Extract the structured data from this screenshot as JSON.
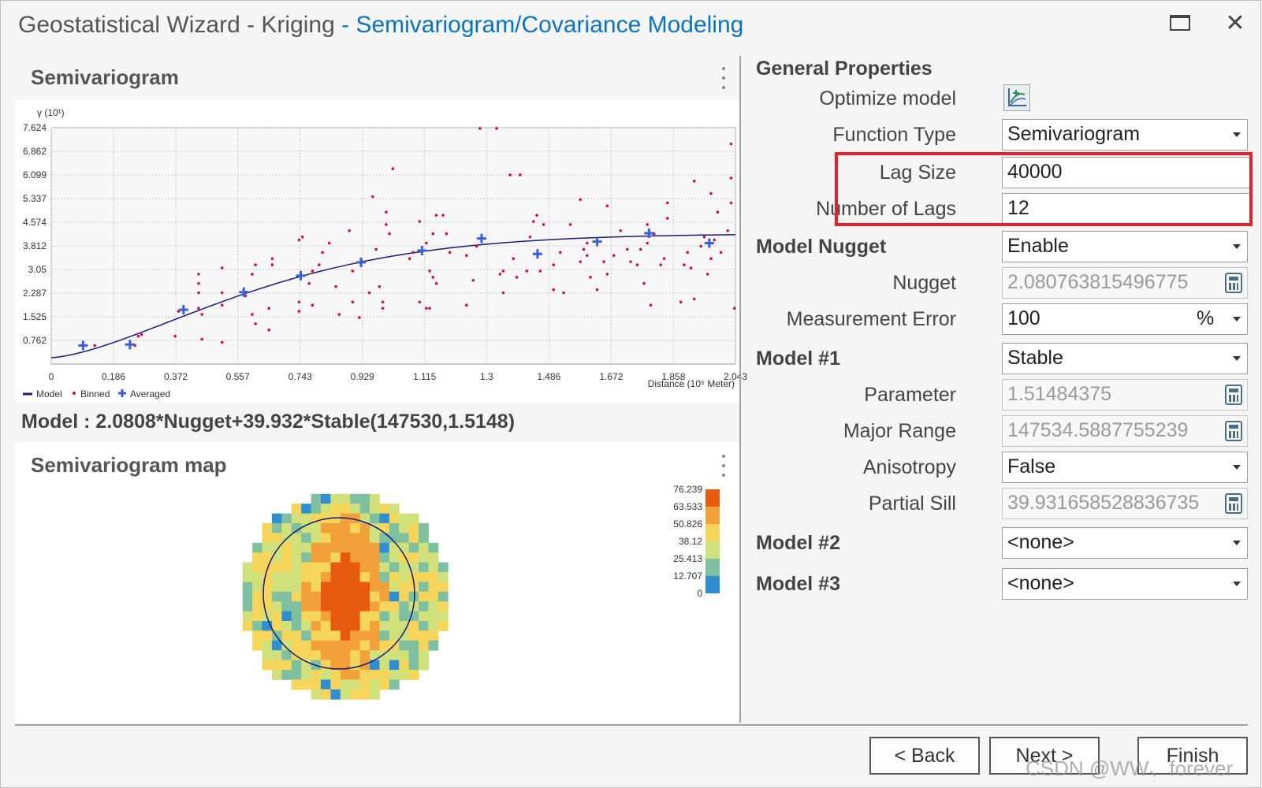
{
  "window": {
    "title_prefix": "Geostatistical Wizard - Kriging",
    "title_step": " - Semivariogram/Covariance Modeling"
  },
  "semivariogram": {
    "heading": "Semivariogram",
    "y_axis_label": "γ (10¹)",
    "x_axis_label": "Distance (10⁵ Meter)",
    "legend": {
      "model": "Model",
      "binned": "Binned",
      "averaged": "Averaged"
    },
    "model_equation": "Model : 2.0808*Nugget+39.932*Stable(147530,1.5148)"
  },
  "chart_data": {
    "type": "scatter",
    "title": "Semivariogram",
    "xlabel": "Distance (10⁵ Meter)",
    "ylabel": "γ (10¹)",
    "xlim": [
      0,
      2.043
    ],
    "ylim": [
      0,
      7.624
    ],
    "x_ticks": [
      "0",
      "0.186",
      "0.372",
      "0.557",
      "0.743",
      "0.929",
      "1.115",
      "1.3",
      "1.486",
      "1.672",
      "1.858",
      "2.043"
    ],
    "y_ticks": [
      "0.762",
      "1.525",
      "2.287",
      "3.05",
      "3.812",
      "4.574",
      "5.337",
      "6.099",
      "6.862",
      "7.624"
    ],
    "grid": true,
    "legend_position": "bottom-left",
    "series": [
      {
        "name": "Model",
        "color": "#1a1a7a",
        "nugget": 0.2081,
        "partial_sill": 3.9932,
        "range": 1.4753,
        "shape": 1.5148
      },
      {
        "name": "Binned",
        "color": "#d0103a",
        "points": [
          [
            0.13,
            0.6
          ],
          [
            0.25,
            0.6
          ],
          [
            0.26,
            0.9
          ],
          [
            0.27,
            0.95
          ],
          [
            0.37,
            0.9
          ],
          [
            0.38,
            1.7
          ],
          [
            0.44,
            1.8
          ],
          [
            0.44,
            2.3
          ],
          [
            0.45,
            0.8
          ],
          [
            0.45,
            1.6
          ],
          [
            0.44,
            2.6
          ],
          [
            0.44,
            2.9
          ],
          [
            0.51,
            1.9
          ],
          [
            0.51,
            3.1
          ],
          [
            0.51,
            2.3
          ],
          [
            0.51,
            0.7
          ],
          [
            0.58,
            2.2
          ],
          [
            0.6,
            1.6
          ],
          [
            0.61,
            1.3
          ],
          [
            0.6,
            2.9
          ],
          [
            0.61,
            3.2
          ],
          [
            0.65,
            1.1
          ],
          [
            0.65,
            1.8
          ],
          [
            0.66,
            3.2
          ],
          [
            0.66,
            3.4
          ],
          [
            0.74,
            1.7
          ],
          [
            0.74,
            2.0
          ],
          [
            0.74,
            4.0
          ],
          [
            0.75,
            4.1
          ],
          [
            0.77,
            2.6
          ],
          [
            0.78,
            3.0
          ],
          [
            0.78,
            1.9
          ],
          [
            0.8,
            3.2
          ],
          [
            0.81,
            3.6
          ],
          [
            0.83,
            3.9
          ],
          [
            0.85,
            2.5
          ],
          [
            0.86,
            1.6
          ],
          [
            0.89,
            4.3
          ],
          [
            0.9,
            3.0
          ],
          [
            0.9,
            2.0
          ],
          [
            0.92,
            1.5
          ],
          [
            0.93,
            3.3
          ],
          [
            0.95,
            2.3
          ],
          [
            0.96,
            5.4
          ],
          [
            0.97,
            3.7
          ],
          [
            0.98,
            2.5
          ],
          [
            0.99,
            2.0
          ],
          [
            0.99,
            1.8
          ],
          [
            1.0,
            4.5
          ],
          [
            1.0,
            4.9
          ],
          [
            1.01,
            4.2
          ],
          [
            1.02,
            6.3
          ],
          [
            1.07,
            3.4
          ],
          [
            1.08,
            3.6
          ],
          [
            1.1,
            2.0
          ],
          [
            1.1,
            4.6
          ],
          [
            1.12,
            1.8
          ],
          [
            1.13,
            1.8
          ],
          [
            1.12,
            3.9
          ],
          [
            1.13,
            3.0
          ],
          [
            1.14,
            4.2
          ],
          [
            1.15,
            4.8
          ],
          [
            1.15,
            2.6
          ],
          [
            1.14,
            2.8
          ],
          [
            1.17,
            4.8
          ],
          [
            1.18,
            4.2
          ],
          [
            1.19,
            3.6
          ],
          [
            1.24,
            1.9
          ],
          [
            1.24,
            3.5
          ],
          [
            1.26,
            2.7
          ],
          [
            1.27,
            3.8
          ],
          [
            1.28,
            7.6
          ],
          [
            1.33,
            7.6
          ],
          [
            1.34,
            2.9
          ],
          [
            1.35,
            2.3
          ],
          [
            1.35,
            3.0
          ],
          [
            1.37,
            6.1
          ],
          [
            1.38,
            3.4
          ],
          [
            1.39,
            2.8
          ],
          [
            1.4,
            6.1
          ],
          [
            1.42,
            3.0
          ],
          [
            1.43,
            4.1
          ],
          [
            1.44,
            4.6
          ],
          [
            1.45,
            4.8
          ],
          [
            1.46,
            3.0
          ],
          [
            1.47,
            4.5
          ],
          [
            1.5,
            2.4
          ],
          [
            1.5,
            3.2
          ],
          [
            1.52,
            3.6
          ],
          [
            1.53,
            2.3
          ],
          [
            1.55,
            4.5
          ],
          [
            1.58,
            5.3
          ],
          [
            1.58,
            3.3
          ],
          [
            1.59,
            3.7
          ],
          [
            1.6,
            3.5
          ],
          [
            1.6,
            3.9
          ],
          [
            1.61,
            2.8
          ],
          [
            1.63,
            2.4
          ],
          [
            1.65,
            3.3
          ],
          [
            1.66,
            5.1
          ],
          [
            1.66,
            2.9
          ],
          [
            1.68,
            3.5
          ],
          [
            1.7,
            4.3
          ],
          [
            1.72,
            3.7
          ],
          [
            1.73,
            3.3
          ],
          [
            1.75,
            3.2
          ],
          [
            1.76,
            3.7
          ],
          [
            1.77,
            2.6
          ],
          [
            1.78,
            4.5
          ],
          [
            1.78,
            3.9
          ],
          [
            1.79,
            1.9
          ],
          [
            1.8,
            4.2
          ],
          [
            1.82,
            3.2
          ],
          [
            1.83,
            3.4
          ],
          [
            1.84,
            4.7
          ],
          [
            1.84,
            5.2
          ],
          [
            1.88,
            2.0
          ],
          [
            1.89,
            3.2
          ],
          [
            1.9,
            3.6
          ],
          [
            1.91,
            3.1
          ],
          [
            1.92,
            5.9
          ],
          [
            1.92,
            2.1
          ],
          [
            1.94,
            3.8
          ],
          [
            1.95,
            4.1
          ],
          [
            1.96,
            2.9
          ],
          [
            1.97,
            3.4
          ],
          [
            1.97,
            5.5
          ],
          [
            1.98,
            4.0
          ],
          [
            1.99,
            4.9
          ],
          [
            2.0,
            3.6
          ],
          [
            2.02,
            4.3
          ],
          [
            2.03,
            6.0
          ],
          [
            2.03,
            7.1
          ],
          [
            2.03,
            5.2
          ],
          [
            2.04,
            1.8
          ]
        ]
      },
      {
        "name": "Averaged",
        "color": "#3a5ed6",
        "points": [
          [
            0.095,
            0.6
          ],
          [
            0.235,
            0.63
          ],
          [
            0.395,
            1.75
          ],
          [
            0.575,
            2.32
          ],
          [
            0.745,
            2.85
          ],
          [
            0.925,
            3.28
          ],
          [
            1.107,
            3.66
          ],
          [
            1.285,
            4.05
          ],
          [
            1.452,
            3.55
          ],
          [
            1.63,
            3.95
          ],
          [
            1.785,
            4.22
          ],
          [
            1.965,
            3.9
          ]
        ]
      }
    ]
  },
  "semivariogram_map": {
    "heading": "Semivariogram map",
    "scale_labels": [
      "76.239",
      "63.533",
      "50.826",
      "38.12",
      "25.413",
      "12.707",
      "0"
    ],
    "scale_colors": [
      "#e85a10",
      "#f2a13a",
      "#f5d65a",
      "#d0e07a",
      "#7ec0a0",
      "#2f8fd0"
    ]
  },
  "properties": {
    "heading": "General Properties",
    "optimize_model_label": "Optimize model",
    "function_type": {
      "label": "Function Type",
      "value": "Semivariogram"
    },
    "lag_size": {
      "label": "Lag Size",
      "value": "40000"
    },
    "number_of_lags": {
      "label": "Number of Lags",
      "value": "12"
    },
    "model_nugget": {
      "label": "Model Nugget",
      "value": "Enable"
    },
    "nugget": {
      "label": "Nugget",
      "value": "2.080763815496775"
    },
    "measurement_error": {
      "label": "Measurement Error",
      "value": "100",
      "unit": "%"
    },
    "model1": {
      "label": "Model #1",
      "value": "Stable"
    },
    "parameter": {
      "label": "Parameter",
      "value": "1.51484375"
    },
    "major_range": {
      "label": "Major Range",
      "value": "147534.5887755239"
    },
    "anisotropy": {
      "label": "Anisotropy",
      "value": "False"
    },
    "partial_sill": {
      "label": "Partial Sill",
      "value": "39.931658528836735"
    },
    "model2": {
      "label": "Model #2",
      "value": "<none>"
    },
    "model3": {
      "label": "Model #3",
      "value": "<none>"
    }
  },
  "buttons": {
    "back": "< Back",
    "next": "Next >",
    "finish": "Finish"
  },
  "watermark": "CSDN @WW、forever",
  "colors": {
    "accent": "#0a72c4",
    "highlight": "#e8202a"
  }
}
